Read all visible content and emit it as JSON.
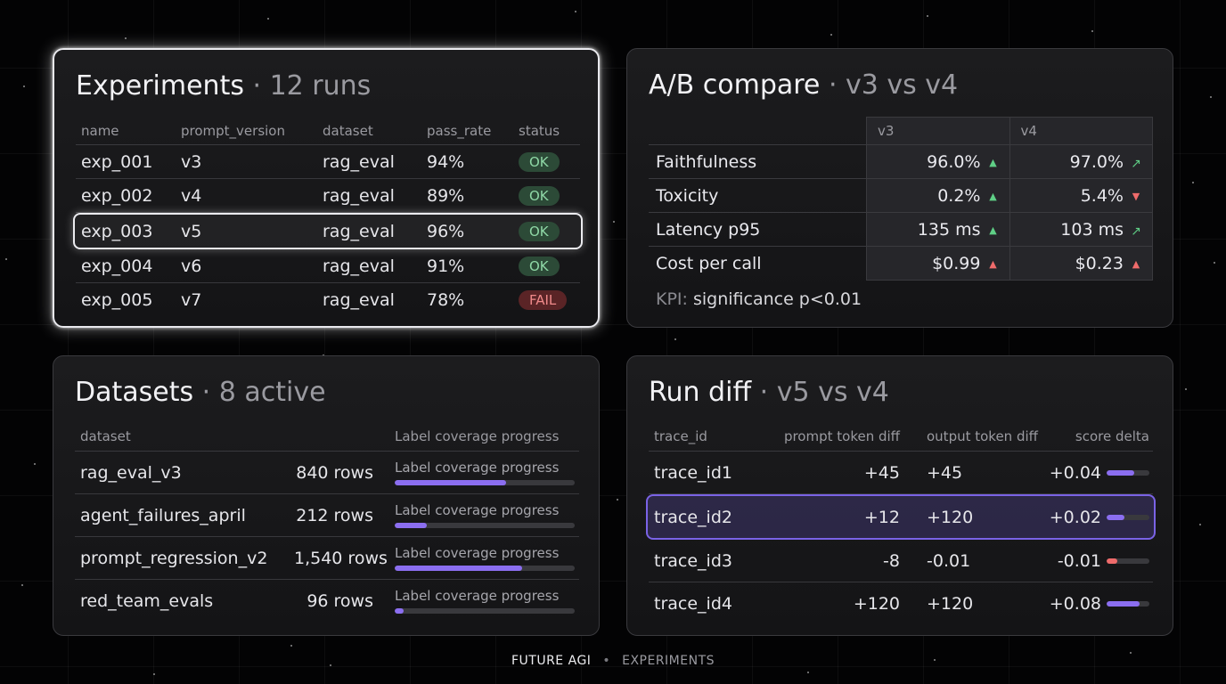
{
  "experiments": {
    "title": "Experiments",
    "subtitle": "· 12 runs",
    "columns": [
      "name",
      "prompt_version",
      "dataset",
      "pass_rate",
      "status"
    ],
    "rows": [
      {
        "name": "exp_001",
        "prompt_version": "v3",
        "dataset": "rag_eval",
        "pass_rate": "94%",
        "status": "OK"
      },
      {
        "name": "exp_002",
        "prompt_version": "v4",
        "dataset": "rag_eval",
        "pass_rate": "89%",
        "status": "OK"
      },
      {
        "name": "exp_003",
        "prompt_version": "v5",
        "dataset": "rag_eval",
        "pass_rate": "96%",
        "status": "OK"
      },
      {
        "name": "exp_004",
        "prompt_version": "v6",
        "dataset": "rag_eval",
        "pass_rate": "91%",
        "status": "OK"
      },
      {
        "name": "exp_005",
        "prompt_version": "v7",
        "dataset": "rag_eval",
        "pass_rate": "78%",
        "status": "FAIL"
      }
    ]
  },
  "ab_compare": {
    "title": "A/B compare",
    "subtitle": "· v3 vs v4",
    "col_a": "v3",
    "col_b": "v4",
    "rows": [
      {
        "metric": "Faithfulness",
        "a": "96.0%",
        "a_trend": "up",
        "b": "97.0%",
        "b_trend": "up-right"
      },
      {
        "metric": "Toxicity",
        "a": "0.2%",
        "a_trend": "up",
        "b": "5.4%",
        "b_trend": "down"
      },
      {
        "metric": "Latency p95",
        "a": "135 ms",
        "a_trend": "up",
        "b": "103 ms",
        "b_trend": "up-right"
      },
      {
        "metric": "Cost per call",
        "a": "$0.99",
        "a_trend": "up-red",
        "b": "$0.23",
        "b_trend": "up-red"
      }
    ],
    "kpi_label": "KPI:",
    "kpi_value": "significance p<0.01"
  },
  "datasets": {
    "title": "Datasets",
    "subtitle": "· 8 active",
    "col_dataset": "dataset",
    "col_progress": "Label coverage progress",
    "rows": [
      {
        "name": "rag_eval_v3",
        "rows": "840 rows",
        "progress_label": "Label coverage progress",
        "progress": 0.62
      },
      {
        "name": "agent_failures_april",
        "rows": "212 rows",
        "progress_label": "Label coverage progress",
        "progress": 0.18
      },
      {
        "name": "prompt_regression_v2",
        "rows": "1,540 rows",
        "progress_label": "Label coverage progress",
        "progress": 0.71
      },
      {
        "name": "red_team_evals",
        "rows": "96 rows",
        "progress_label": "Label coverage progress",
        "progress": 0.05
      }
    ]
  },
  "run_diff": {
    "title": "Run diff",
    "subtitle": "· v5 vs v4",
    "columns": [
      "trace_id",
      "prompt token diff",
      "output token diff",
      "score delta"
    ],
    "rows": [
      {
        "trace_id": "trace_id1",
        "prompt_diff": "+45",
        "output_diff": "+45",
        "score_delta": "+0.04",
        "bar": 0.65,
        "negative": false
      },
      {
        "trace_id": "trace_id2",
        "prompt_diff": "+12",
        "output_diff": "+120",
        "score_delta": "+0.02",
        "bar": 0.42,
        "negative": false
      },
      {
        "trace_id": "trace_id3",
        "prompt_diff": "-8",
        "output_diff": "-0.01",
        "score_delta": "-0.01",
        "bar": 0.25,
        "negative": true
      },
      {
        "trace_id": "trace_id4",
        "prompt_diff": "+120",
        "output_diff": "+120",
        "score_delta": "+0.08",
        "bar": 0.78,
        "negative": false
      }
    ]
  },
  "footer": {
    "brand": "FUTURE AGI",
    "separator": "•",
    "section": "EXPERIMENTS"
  }
}
